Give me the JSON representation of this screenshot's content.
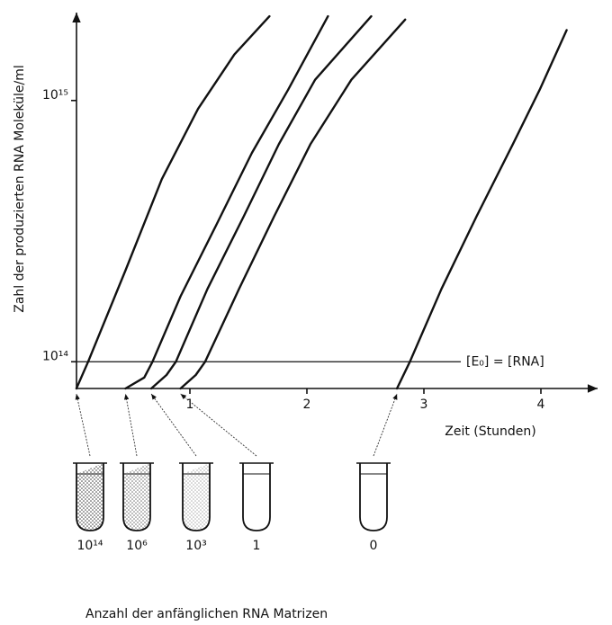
{
  "chart_data": {
    "type": "line",
    "y_label": "Zahl der produzierten RNA Moleküle/ml",
    "x_label": "Zeit (Stunden)",
    "caption": "Anzahl der anfänglichen RNA Matrizen",
    "annotation": "[E₀] = [RNA]",
    "hline": 100000000000000.0,
    "ylog": true,
    "xlim": [
      0,
      4.5
    ],
    "ylim": [
      79000000000000.0,
      2240000000000000.0
    ],
    "xticks": [
      1,
      2,
      3,
      4
    ],
    "yticks": [
      {
        "value": 100000000000000.0,
        "label": "10¹⁴"
      },
      {
        "value": 1000000000000000.0,
        "label": "10¹⁵"
      }
    ],
    "color": "#111111",
    "series": [
      {
        "name": "10¹⁴",
        "x": [
          0.03,
          0.13,
          0.45,
          0.76,
          1.07,
          1.38,
          1.68
        ],
        "values": [
          79000000000000.0,
          100000000000000.0,
          224000000000000.0,
          500000000000000.0,
          930000000000000.0,
          1500000000000000.0,
          2100000000000000.0
        ]
      },
      {
        "name": "10⁶",
        "x": [
          0.45,
          0.61,
          0.68,
          0.92,
          1.22,
          1.53,
          1.84,
          2.18
        ],
        "values": [
          79000000000000.0,
          87000000000000.0,
          100000000000000.0,
          178000000000000.0,
          330000000000000.0,
          630000000000000.0,
          1100000000000000.0,
          2100000000000000.0
        ]
      },
      {
        "name": "10³",
        "x": [
          0.67,
          0.8,
          0.88,
          1.15,
          1.46,
          1.76,
          2.07,
          2.55
        ],
        "values": [
          79000000000000.0,
          89000000000000.0,
          100000000000000.0,
          190000000000000.0,
          360000000000000.0,
          680000000000000.0,
          1200000000000000.0,
          2100000000000000.0
        ]
      },
      {
        "name": "1",
        "x": [
          0.92,
          1.05,
          1.13,
          1.42,
          1.72,
          2.03,
          2.38,
          2.84
        ],
        "values": [
          79000000000000.0,
          89000000000000.0,
          100000000000000.0,
          190000000000000.0,
          360000000000000.0,
          680000000000000.0,
          1200000000000000.0,
          2040000000000000.0
        ]
      },
      {
        "name": "0",
        "x": [
          2.77,
          2.88,
          3.15,
          3.45,
          3.76,
          3.99,
          4.22
        ],
        "values": [
          79000000000000.0,
          100000000000000.0,
          190000000000000.0,
          360000000000000.0,
          680000000000000.0,
          1100000000000000.0,
          1860000000000000.0
        ]
      }
    ]
  }
}
